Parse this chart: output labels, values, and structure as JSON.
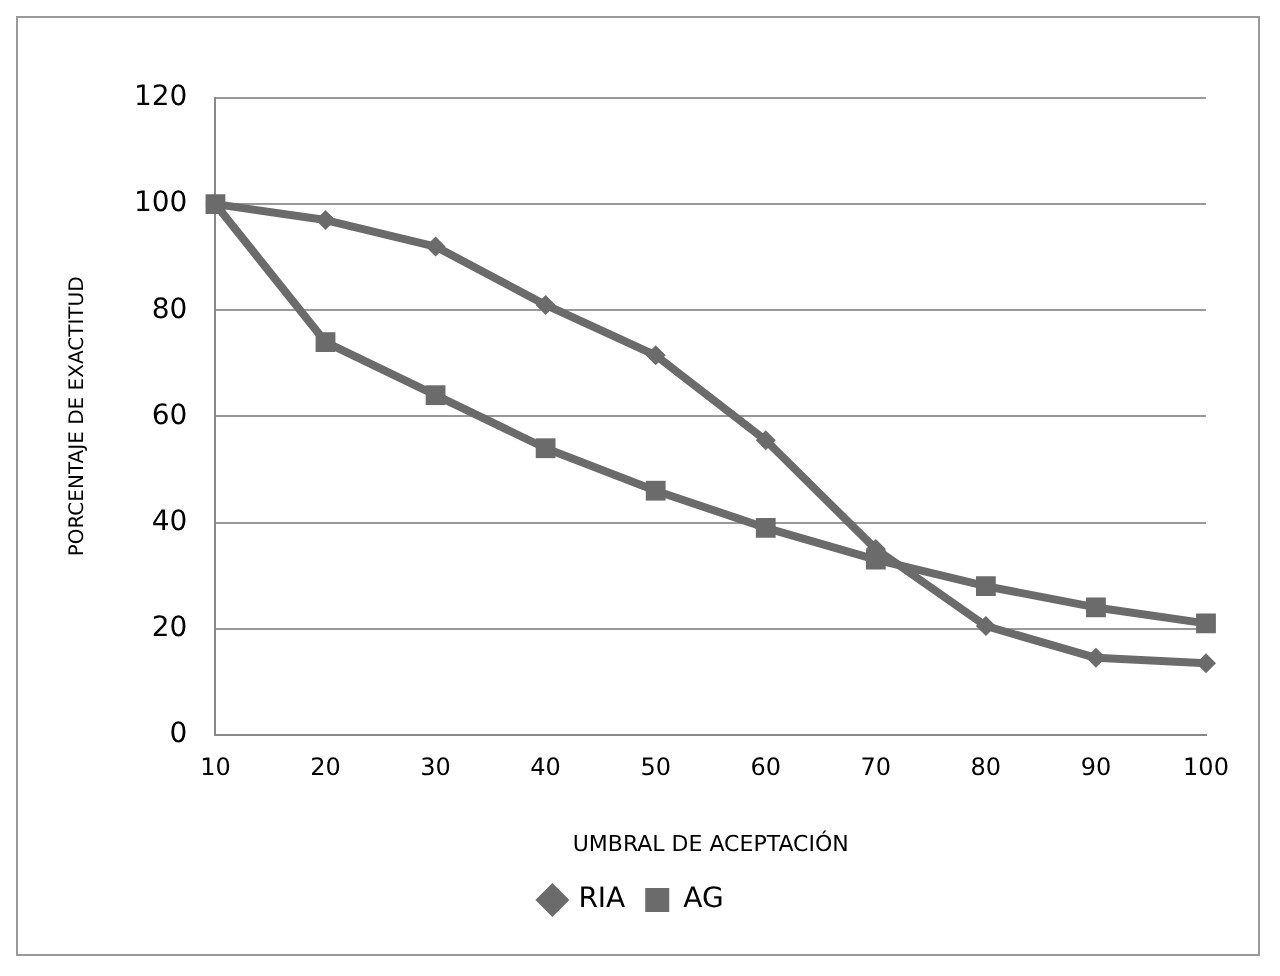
{
  "chart_data": {
    "type": "line",
    "xlabel": "UMBRAL DE ACEPTACIÓN",
    "ylabel": "PORCENTAJE DE EXACTITUD",
    "categories": [
      "10",
      "20",
      "30",
      "40",
      "50",
      "60",
      "70",
      "80",
      "90",
      "100"
    ],
    "series": [
      {
        "name": "RIA",
        "color": "#6b6b6b",
        "marker": "diamond",
        "values": [
          100,
          97,
          92,
          81,
          71.5,
          55.5,
          35,
          20.5,
          14.5,
          13.5
        ]
      },
      {
        "name": "AG",
        "color": "#6b6b6b",
        "marker": "square",
        "values": [
          100,
          74,
          64,
          54,
          46,
          39,
          33,
          28,
          24,
          21
        ]
      }
    ],
    "ylim": [
      0,
      120
    ],
    "yticks": [
      0,
      20,
      40,
      60,
      80,
      100,
      120
    ],
    "grid": "y",
    "legend": "bottom"
  }
}
